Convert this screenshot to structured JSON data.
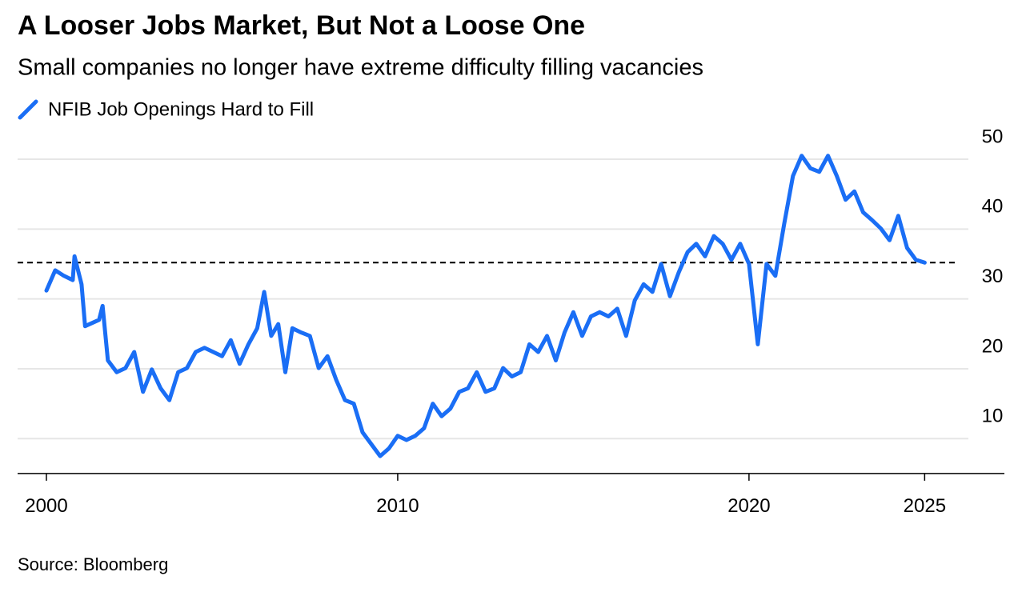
{
  "chart_data": {
    "type": "line",
    "title": "A Looser Jobs Market, But Not a Loose One",
    "subtitle": "Small companies no longer have extreme difficulty filling vacancies",
    "source": "Source: Bloomberg",
    "x": [
      2000,
      2000.25,
      2000.5,
      2000.75,
      2000.8,
      2001,
      2001.1,
      2001.5,
      2001.6,
      2001.75,
      2002,
      2002.25,
      2002.5,
      2002.75,
      2003,
      2003.25,
      2003.5,
      2003.75,
      2004,
      2004.25,
      2004.5,
      2004.75,
      2005,
      2005.25,
      2005.5,
      2005.75,
      2006,
      2006.2,
      2006.4,
      2006.6,
      2006.8,
      2007,
      2007.25,
      2007.5,
      2007.75,
      2008,
      2008.25,
      2008.5,
      2008.75,
      2009,
      2009.25,
      2009.5,
      2009.75,
      2010,
      2010.25,
      2010.5,
      2010.75,
      2011,
      2011.25,
      2011.5,
      2011.75,
      2012,
      2012.25,
      2012.5,
      2012.75,
      2013,
      2013.25,
      2013.5,
      2013.75,
      2014,
      2014.25,
      2014.5,
      2014.75,
      2015,
      2015.25,
      2015.5,
      2015.75,
      2016,
      2016.25,
      2016.5,
      2016.75,
      2017,
      2017.25,
      2017.5,
      2017.75,
      2018,
      2018.25,
      2018.5,
      2018.75,
      2019,
      2019.25,
      2019.5,
      2019.75,
      2020,
      2020.25,
      2020.5,
      2020.75,
      2021,
      2021.25,
      2021.5,
      2021.75,
      2022,
      2022.25,
      2022.5,
      2022.75,
      2023,
      2023.25,
      2023.5,
      2023.75,
      2024,
      2024.25,
      2024.5,
      2024.75,
      2025
    ],
    "series": [
      {
        "name": "NFIB Job Openings Hard to Fill",
        "color": "#1a6ef5",
        "values": [
          31.2,
          34.1,
          33.3,
          32.7,
          36.1,
          32.1,
          26.1,
          27,
          29,
          21.2,
          19.5,
          20.1,
          22.4,
          16.7,
          19.9,
          17.2,
          15.5,
          19.5,
          20.1,
          22.4,
          23,
          22.4,
          21.8,
          24.1,
          20.7,
          23.5,
          25.8,
          31,
          24.7,
          26.4,
          19.5,
          25.8,
          25.2,
          24.7,
          20.1,
          21.8,
          18.4,
          15.5,
          15,
          10.9,
          9.2,
          7.5,
          8.6,
          10.4,
          9.8,
          10.4,
          11.5,
          15,
          13.2,
          14.3,
          16.7,
          17.2,
          19.5,
          16.7,
          17.2,
          20.1,
          18.9,
          19.5,
          23.5,
          22.4,
          24.7,
          21.2,
          25.2,
          28.1,
          24.7,
          27.5,
          28.1,
          27.5,
          28.6,
          24.7,
          29.8,
          32.1,
          31,
          35,
          30.4,
          33.8,
          36.7,
          37.9,
          36.1,
          39,
          37.9,
          35.6,
          37.9,
          35,
          23.5,
          35,
          33.3,
          40.7,
          47.6,
          50.5,
          48.7,
          48.2,
          50.5,
          47.6,
          44.2,
          45.4,
          42.4,
          41.3,
          40.1,
          38.4,
          41.9,
          37.3,
          35.6,
          35.2
        ]
      }
    ],
    "reference_line": 35.2,
    "xlim": [
      1999.18,
      2027.27
    ],
    "xticks": [
      2000,
      2010,
      2020,
      2025
    ],
    "ylim": [
      5,
      55
    ],
    "yticks": [
      10,
      20,
      30,
      40,
      50
    ],
    "grid": true
  }
}
